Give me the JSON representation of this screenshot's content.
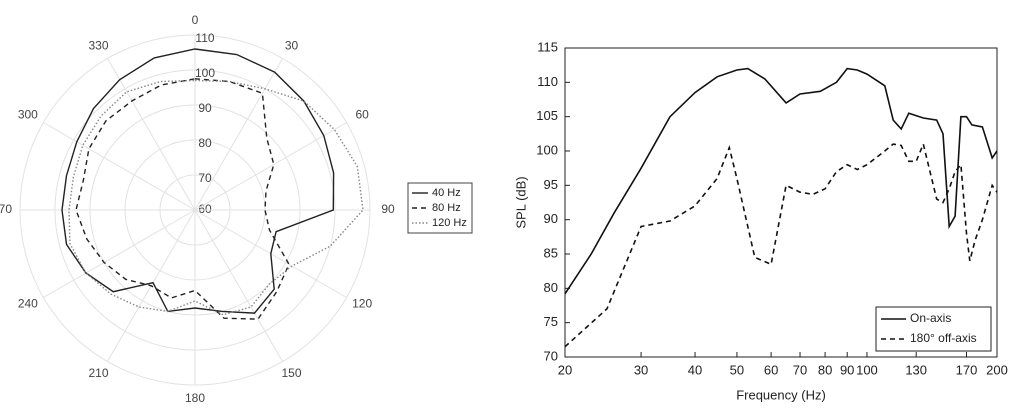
{
  "chart_data": [
    {
      "type": "polar",
      "theta": [
        0,
        15,
        30,
        45,
        60,
        75,
        90,
        105,
        120,
        135,
        150,
        165,
        180,
        195,
        210,
        225,
        240,
        255,
        270,
        285,
        300,
        315,
        330,
        345
      ],
      "thetaticks": [
        0,
        30,
        60,
        90,
        120,
        150,
        180,
        210,
        240,
        270,
        300,
        330
      ],
      "rlim": [
        60,
        110
      ],
      "rticks": [
        60,
        70,
        80,
        90,
        100,
        110
      ],
      "grid": true,
      "legend": "right",
      "series": [
        {
          "name": "40 Hz",
          "color": "#222222",
          "line_style": "solid",
          "values": [
            106,
            106,
            105.5,
            104,
            102.5,
            101,
            99.5,
            84,
            85,
            92,
            94,
            90,
            88,
            90,
            84,
            93,
            96,
            98,
            98,
            98,
            99,
            101,
            103,
            105
          ]
        },
        {
          "name": "80 Hz",
          "color": "#222222",
          "line_style": "dashed",
          "values": [
            97.5,
            98,
            98.5,
            89,
            86,
            81,
            80,
            82,
            91,
            93,
            96,
            92,
            83,
            86,
            85,
            88,
            90,
            92,
            94,
            93,
            95,
            96,
            96,
            97
          ]
        },
        {
          "name": "120 Hz",
          "color": "#888888",
          "line_style": "dotted",
          "values": [
            97,
            98,
            100,
            104,
            106,
            108,
            108,
            100,
            92,
            90,
            92,
            91,
            86,
            90,
            92,
            94,
            96,
            97,
            96,
            96,
            97,
            98,
            99,
            98
          ]
        }
      ]
    },
    {
      "type": "line",
      "x_label": "Frequency (Hz)",
      "y_label": "SPL (dB)",
      "log_x": true,
      "xlim": [
        20,
        200
      ],
      "xticks": [
        20,
        30,
        40,
        50,
        60,
        70,
        80,
        90,
        100,
        130,
        170,
        200
      ],
      "ylim": [
        70,
        115
      ],
      "yticks": [
        70,
        75,
        80,
        85,
        90,
        95,
        100,
        105,
        110,
        115
      ],
      "grid": false,
      "legend": "bottom right",
      "series": [
        {
          "name": "On-axis",
          "color": "#111111",
          "line_style": "solid",
          "x": [
            20,
            23,
            26,
            30,
            35,
            40,
            45,
            50,
            53,
            58,
            65,
            70,
            78,
            85,
            90,
            95,
            100,
            110,
            115,
            120,
            125,
            135,
            145,
            150,
            155,
            160,
            165,
            170,
            175,
            185,
            195,
            200
          ],
          "values": [
            79.2,
            85,
            91,
            97.5,
            105,
            108.5,
            110.8,
            111.8,
            112,
            110.5,
            107,
            108.3,
            108.7,
            110,
            112,
            111.8,
            111.2,
            109.5,
            104.5,
            103.2,
            105.5,
            104.8,
            104.5,
            102.5,
            89,
            90.5,
            105,
            105,
            103.8,
            103.5,
            99,
            100
          ]
        },
        {
          "name": "180° off-axis",
          "color": "#111111",
          "line_style": "dashed",
          "x": [
            20,
            25,
            30,
            35,
            40,
            45,
            48,
            50,
            55,
            60,
            65,
            70,
            75,
            80,
            85,
            90,
            95,
            100,
            110,
            115,
            120,
            125,
            130,
            135,
            145,
            150,
            155,
            160,
            165,
            170,
            173,
            178,
            185,
            195,
            200
          ],
          "values": [
            71.5,
            77,
            89,
            89.8,
            92,
            96,
            100.5,
            96,
            84.5,
            83.5,
            95,
            94,
            93.7,
            94.5,
            97,
            98,
            97.3,
            98,
            100,
            101,
            100.8,
            98.5,
            98.5,
            101,
            93,
            92.5,
            94.5,
            97,
            98,
            88,
            84,
            87,
            90,
            95,
            94
          ]
        }
      ]
    }
  ]
}
